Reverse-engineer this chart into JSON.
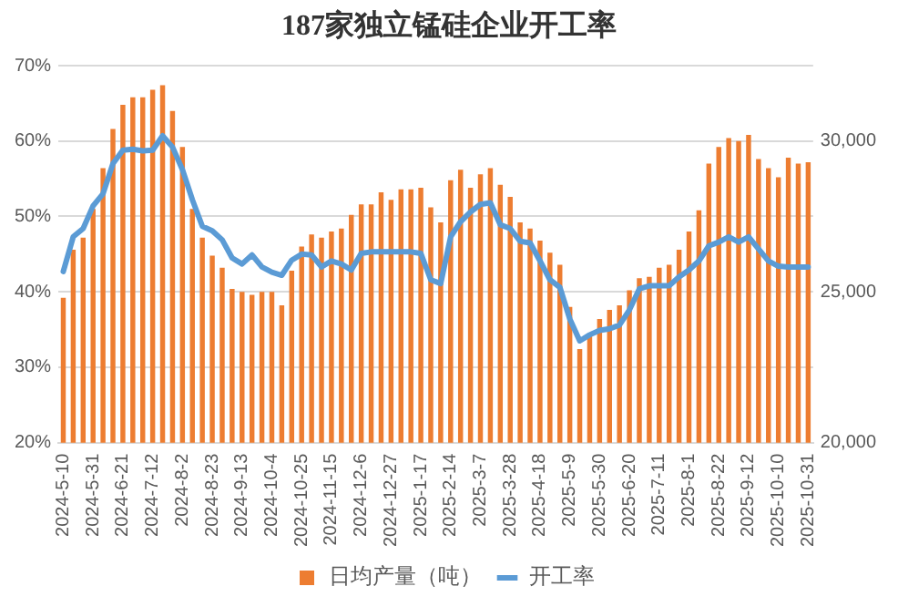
{
  "chart_data": {
    "type": "bar",
    "title": "187家独立锰硅企业开工率",
    "categories": [
      "2024-5-10",
      null,
      null,
      "2024-5-31",
      null,
      null,
      "2024-6-21",
      null,
      null,
      "2024-7-12",
      null,
      null,
      "2024-8-2",
      null,
      null,
      "2024-8-23",
      null,
      null,
      "2024-9-13",
      null,
      null,
      "2024-10-4",
      null,
      null,
      "2024-10-25",
      null,
      null,
      "2024-11-15",
      null,
      null,
      "2024-12-6",
      null,
      null,
      "2024-12-27",
      null,
      null,
      "2025-1-17",
      null,
      null,
      "2025-2-14",
      null,
      null,
      "2025-3-7",
      null,
      null,
      "2025-3-28",
      null,
      null,
      "2025-4-18",
      null,
      null,
      "2025-5-9",
      null,
      null,
      "2025-5-30",
      null,
      null,
      "2025-6-20",
      null,
      null,
      "2025-7-11",
      null,
      null,
      "2025-8-1",
      null,
      null,
      "2025-8-22",
      null,
      null,
      "2025-9-12",
      null,
      null,
      "2025-10-10",
      null,
      null,
      "2025-10-31"
    ],
    "series": [
      {
        "name": "日均产量（吨）",
        "axis": "y2",
        "color": "#ed7d31",
        "values": [
          24800,
          26400,
          26800,
          27750,
          29100,
          30400,
          31200,
          31450,
          31450,
          31700,
          31850,
          31000,
          29800,
          27750,
          26800,
          26200,
          25800,
          25100,
          25000,
          24900,
          25000,
          25000,
          24550,
          25700,
          26500,
          26900,
          26800,
          27000,
          27100,
          27550,
          27900,
          27900,
          28300,
          28050,
          28400,
          28400,
          28450,
          27800,
          27300,
          28700,
          29050,
          28450,
          28900,
          29100,
          28550,
          28150,
          27300,
          27100,
          26700,
          26300,
          25900,
          24500,
          23100,
          23550,
          24100,
          24400,
          24550,
          25050,
          25450,
          25500,
          25800,
          25900,
          26400,
          27000,
          27700,
          29250,
          29800,
          30100,
          30000,
          30200,
          29400,
          29100,
          28800,
          29450,
          29250,
          29300
        ]
      },
      {
        "name": "开工率",
        "type": "line",
        "axis": "y",
        "color": "#5b9bd5",
        "values": [
          42.7,
          47.3,
          48.4,
          51.4,
          53.0,
          57.0,
          58.8,
          58.9,
          58.7,
          58.8,
          60.7,
          59.2,
          56.2,
          52.2,
          48.7,
          48.1,
          46.9,
          44.5,
          43.7,
          44.9,
          43.3,
          42.6,
          42.2,
          44.2,
          45.0,
          44.9,
          43.3,
          44.1,
          43.7,
          42.9,
          45.1,
          45.3,
          45.3,
          45.3,
          45.3,
          45.3,
          45.1,
          41.6,
          41.1,
          47.3,
          49.3,
          50.6,
          51.6,
          51.8,
          48.9,
          48.4,
          46.7,
          46.5,
          44.1,
          41.6,
          40.6,
          36.4,
          33.5,
          34.3,
          34.9,
          35.1,
          35.6,
          37.6,
          40.4,
          40.8,
          40.8,
          40.8,
          42.0,
          42.9,
          44.1,
          46.1,
          46.6,
          47.3,
          46.6,
          47.3,
          45.7,
          44.1,
          43.4,
          43.3,
          43.3,
          43.3
        ]
      }
    ],
    "ylim": [
      20,
      70
    ],
    "yticks": [
      {
        "value": 20,
        "label": "20%"
      },
      {
        "value": 30,
        "label": "30%"
      },
      {
        "value": 40,
        "label": "40%"
      },
      {
        "value": 50,
        "label": "50%"
      },
      {
        "value": 60,
        "label": "60%"
      },
      {
        "value": 70,
        "label": "70%"
      }
    ],
    "y2lim": [
      20000,
      32500
    ],
    "y2ticks": [
      {
        "value": 20000,
        "label": "20,000"
      },
      {
        "value": 25000,
        "label": "25,000"
      },
      {
        "value": 30000,
        "label": "30,000"
      }
    ],
    "grid": "y",
    "legend": "bottom",
    "marker": "none",
    "line_style": "solid"
  }
}
